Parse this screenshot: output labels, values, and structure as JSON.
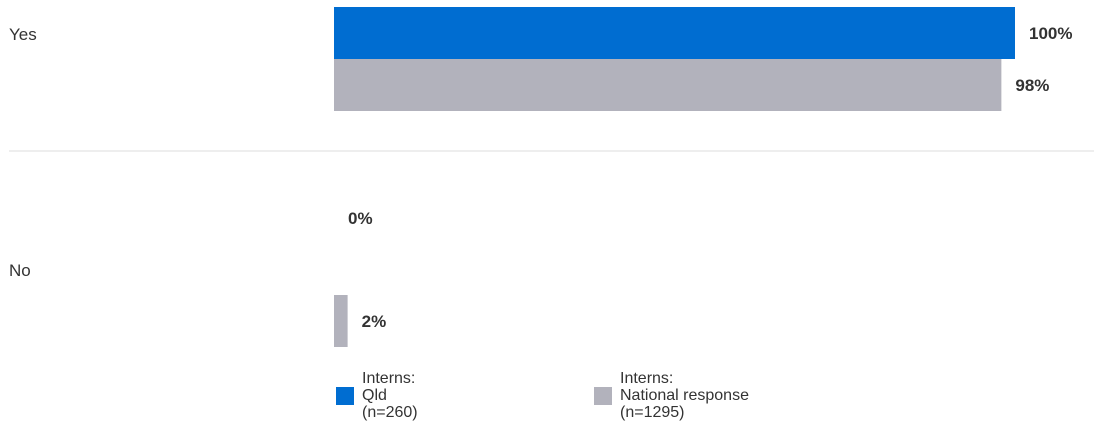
{
  "chart_data": {
    "type": "bar",
    "orientation": "horizontal",
    "categories": [
      "Yes",
      "No"
    ],
    "series": [
      {
        "name": "Interns: Qld (n=260)",
        "values": [
          100,
          0
        ],
        "labels": [
          "100%",
          "0%"
        ],
        "color": "#006dd1"
      },
      {
        "name": "Interns: National response (n=1295)",
        "values": [
          98,
          2
        ],
        "labels": [
          "98%",
          "2%"
        ],
        "color": "#b2b2bc"
      }
    ],
    "xlim": [
      0,
      100
    ],
    "grid": false,
    "legend_position": "bottom"
  },
  "legend": [
    {
      "lines": [
        "Interns:",
        "Qld",
        "(n=260)"
      ],
      "color": "#006dd1"
    },
    {
      "lines": [
        "Interns:",
        "National response",
        "(n=1295)"
      ],
      "color": "#b2b2bc"
    }
  ]
}
